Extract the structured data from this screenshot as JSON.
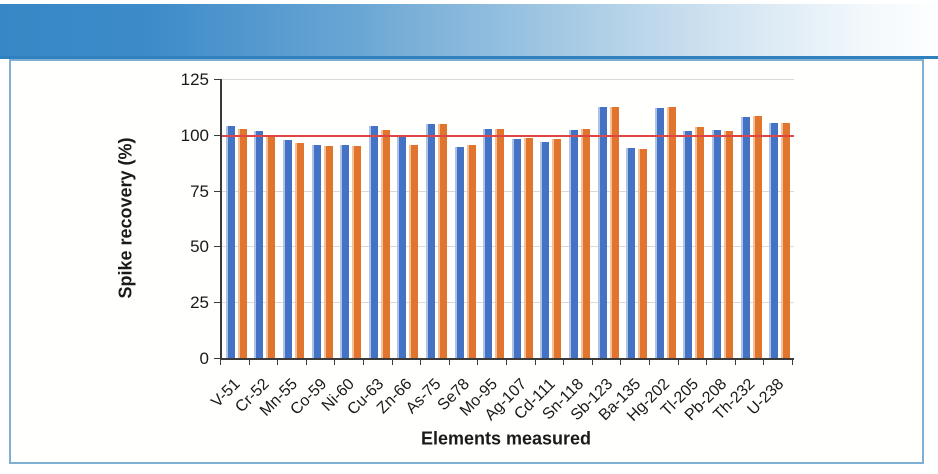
{
  "banner": {
    "color_left": "#3787c6",
    "color_right": "#fdfeff",
    "border_color": "#2e80bf"
  },
  "card": {
    "border_color": "#7fb0d3",
    "background": "#fffffe"
  },
  "chart_data": {
    "type": "bar",
    "title": "",
    "xlabel": "Elements measured",
    "ylabel": "Spike recovery (%)",
    "ylim": [
      0,
      125
    ],
    "yticks": [
      0,
      25,
      50,
      75,
      100,
      125
    ],
    "grid": true,
    "legend_position": "none",
    "categories": [
      "V-51",
      "Cr-52",
      "Mn-55",
      "Co-59",
      "Ni-60",
      "Cu-63",
      "Zn-66",
      "As-75",
      "Se78",
      "Mo-95",
      "Ag-107",
      "Cd-111",
      "Sn-118",
      "Sb-123",
      "Ba-135",
      "Hg-202",
      "Tl-205",
      "Pb-208",
      "Th-232",
      "U-238"
    ],
    "series": [
      {
        "name": "series_blue",
        "color": "#4472C4",
        "edge_color": "#AEC3E6",
        "values": [
          104,
          101.5,
          97.5,
          95.5,
          95.5,
          104,
          100,
          105,
          94.5,
          102.5,
          98,
          97,
          102,
          112.5,
          94,
          112,
          101.5,
          102,
          108,
          105.5
        ]
      },
      {
        "name": "series_orange",
        "color": "#E2752E",
        "edge_color": "#F4C09A",
        "values": [
          102.5,
          100,
          96.5,
          95,
          95,
          102,
          95.5,
          105,
          95.5,
          102.5,
          98.5,
          98,
          102.5,
          112.5,
          93.5,
          112.5,
          103.5,
          101.5,
          108.5,
          105.5
        ]
      }
    ],
    "reference_line": {
      "value": 100,
      "color": "#E04545"
    },
    "axis_color": "#3a3a3a",
    "grid_color": "#d9d9d9"
  }
}
